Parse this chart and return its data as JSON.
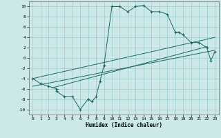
{
  "xlabel": "Humidex (Indice chaleur)",
  "ylabel": "",
  "bg_color": "#cce8e8",
  "grid_color": "#99cccc",
  "line_color": "#1a6666",
  "xlim": [
    -0.5,
    23.5
  ],
  "ylim": [
    -11,
    11
  ],
  "xticks": [
    0,
    1,
    2,
    3,
    4,
    5,
    6,
    7,
    8,
    9,
    10,
    11,
    12,
    13,
    14,
    15,
    16,
    17,
    18,
    19,
    20,
    21,
    22,
    23
  ],
  "yticks": [
    -10,
    -8,
    -6,
    -4,
    -2,
    0,
    2,
    4,
    6,
    8,
    10
  ],
  "series": {
    "main": [
      [
        0,
        -4
      ],
      [
        1,
        -5
      ],
      [
        2,
        -5.5
      ],
      [
        3,
        -6
      ],
      [
        3,
        -6.5
      ],
      [
        4,
        -7.5
      ],
      [
        5,
        -7.5
      ],
      [
        6,
        -10
      ],
      [
        7,
        -8
      ],
      [
        7.5,
        -8.5
      ],
      [
        8,
        -7.5
      ],
      [
        8.5,
        -4.5
      ],
      [
        9,
        -1.5
      ],
      [
        10,
        10
      ],
      [
        11,
        10
      ],
      [
        12,
        9
      ],
      [
        13,
        10
      ],
      [
        14,
        10.2
      ],
      [
        15,
        9
      ],
      [
        16,
        9
      ],
      [
        17,
        8.5
      ],
      [
        18,
        5
      ],
      [
        18.5,
        5
      ],
      [
        19,
        4.5
      ],
      [
        20,
        3
      ],
      [
        21,
        3
      ],
      [
        22,
        2
      ],
      [
        22.5,
        -0.5
      ],
      [
        23,
        1.2
      ]
    ],
    "line1": [
      [
        0,
        -4
      ],
      [
        23,
        4.0
      ]
    ],
    "line2": [
      [
        0,
        -5.5
      ],
      [
        23,
        1.5
      ]
    ],
    "line3": [
      [
        2.5,
        -5.8
      ],
      [
        22,
        2.2
      ]
    ]
  },
  "marker": "+"
}
